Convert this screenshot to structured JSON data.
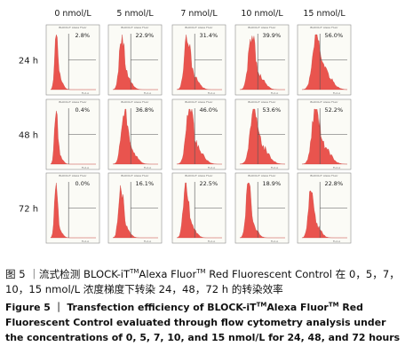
{
  "figure": {
    "columns": [
      "0 nmol/L",
      "5 nmol/L",
      "7 nmol/L",
      "10 nmol/L",
      "15 nmol/L"
    ],
    "rows": [
      "24 h",
      "48 h",
      "72 h"
    ],
    "panel_header": "BLOCK-iT Alexa Fluor",
    "panel_axis_label": "FL2-A",
    "histogram_color": "#e8423c"
  },
  "chart_data": {
    "type": "table",
    "title": "",
    "row_labels": [
      "24 h",
      "48 h",
      "72 h"
    ],
    "column_labels": [
      "0 nmol/L",
      "5 nmol/L",
      "7 nmol/L",
      "10 nmol/L",
      "15 nmol/L"
    ],
    "cells": [
      [
        "2.8%",
        "22.9%",
        "31.4%",
        "39.9%",
        "56.0%"
      ],
      [
        "0.4%",
        "36.8%",
        "46.0%",
        "53.6%",
        "52.2%"
      ],
      [
        "0.0%",
        "16.1%",
        "22.5%",
        "18.9%",
        "22.8%"
      ]
    ]
  },
  "caption_cn": {
    "prefix": "图 5 ｜流式检测 BLOCK-iT",
    "tm1": "TM",
    "mid": "Alexa Fluor",
    "tm2": "TM",
    "rest": " Red Fluorescent Control 在 0，5，7，10，15 nmol/L 浓度梯度下转染 24，48，72 h 的转染效率"
  },
  "caption_en": {
    "prefix": "Figure 5 ｜ Transfection efficiency of BLOCK-iT",
    "tm1": "TM",
    "mid": "Alexa Fluor",
    "tm2": "TM",
    "rest": " Red Fluorescent Control evaluated through flow cytometry analysis under the concentrations of 0, 5, 7, 10, and 15 nmol/L for 24, 48, and 72 hours"
  }
}
